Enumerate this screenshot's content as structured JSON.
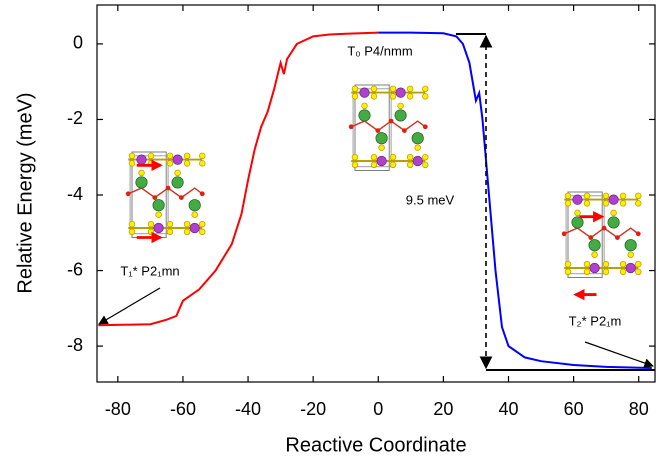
{
  "chart_data": {
    "type": "line",
    "xlabel": "Reactive Coordinate",
    "ylabel": "Relative Energy (meV)",
    "xlim": [
      -86.4,
      85
    ],
    "ylim": [
      -8.95,
      1.03
    ],
    "xticks": [
      -80,
      -60,
      -40,
      -20,
      0,
      20,
      40,
      60,
      80
    ],
    "yticks": [
      0,
      -2,
      -4,
      -6,
      -8
    ],
    "annotations": [
      "T₀ P4/nmm",
      "T₁* P2₁mn",
      "T₂* P2₁m",
      "9.5 meV"
    ],
    "series": [
      {
        "color": "#ff0000",
        "x": [
          -86,
          -70,
          -65,
          -62,
          -60,
          -55,
          -50,
          -45,
          -42,
          -40,
          -38,
          -36,
          -34,
          -32,
          -30,
          -29,
          -28,
          -25,
          -20,
          -15,
          -10,
          0
        ],
        "values": [
          -7.45,
          -7.42,
          -7.3,
          -7.2,
          -6.8,
          -6.5,
          -6.0,
          -5.3,
          -4.5,
          -3.6,
          -2.8,
          -2.2,
          -1.8,
          -1.2,
          -0.5,
          -0.8,
          -0.4,
          0.0,
          0.2,
          0.25,
          0.27,
          0.3
        ]
      },
      {
        "color": "#0000ff",
        "x": [
          0,
          10,
          20,
          24,
          26,
          28,
          30,
          31,
          32,
          34,
          36,
          38,
          40,
          45,
          50,
          60,
          70,
          84
        ],
        "values": [
          0.3,
          0.3,
          0.28,
          0.2,
          0.0,
          -0.5,
          -1.5,
          -1.3,
          -2.0,
          -4.0,
          -6.0,
          -7.5,
          -8.0,
          -8.3,
          -8.4,
          -8.5,
          -8.55,
          -8.58
        ]
      }
    ]
  }
}
